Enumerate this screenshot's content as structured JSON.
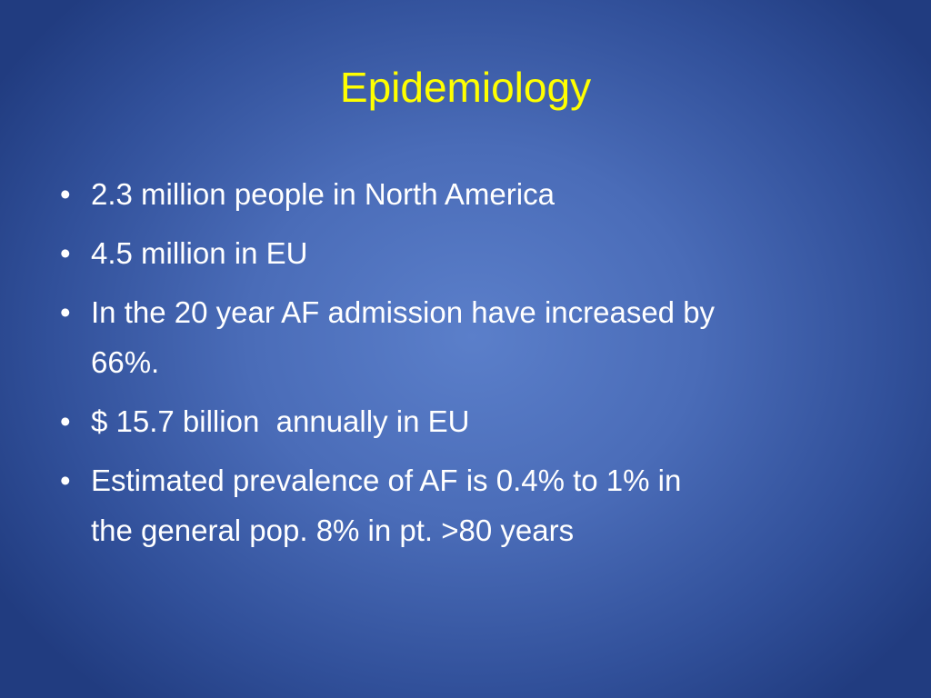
{
  "slide": {
    "title": "Epidemiology",
    "bullets": [
      {
        "lines": [
          "2.3 million people in North America"
        ]
      },
      {
        "lines": [
          "4.5 million in EU"
        ]
      },
      {
        "lines": [
          "In the 20 year AF admission have increased by",
          "66%."
        ]
      },
      {
        "lines": [
          "$ 15.7 billion  annually in EU"
        ]
      },
      {
        "lines": [
          "Estimated prevalence of AF is 0.4% to 1% in",
          "the general pop. 8% in pt. >80 years"
        ]
      }
    ],
    "bullet_glyph": "•",
    "colors": {
      "title": "#ffff00",
      "text": "#ffffff",
      "background_center": "#5b7fca",
      "background_edge": "#213c80"
    }
  }
}
